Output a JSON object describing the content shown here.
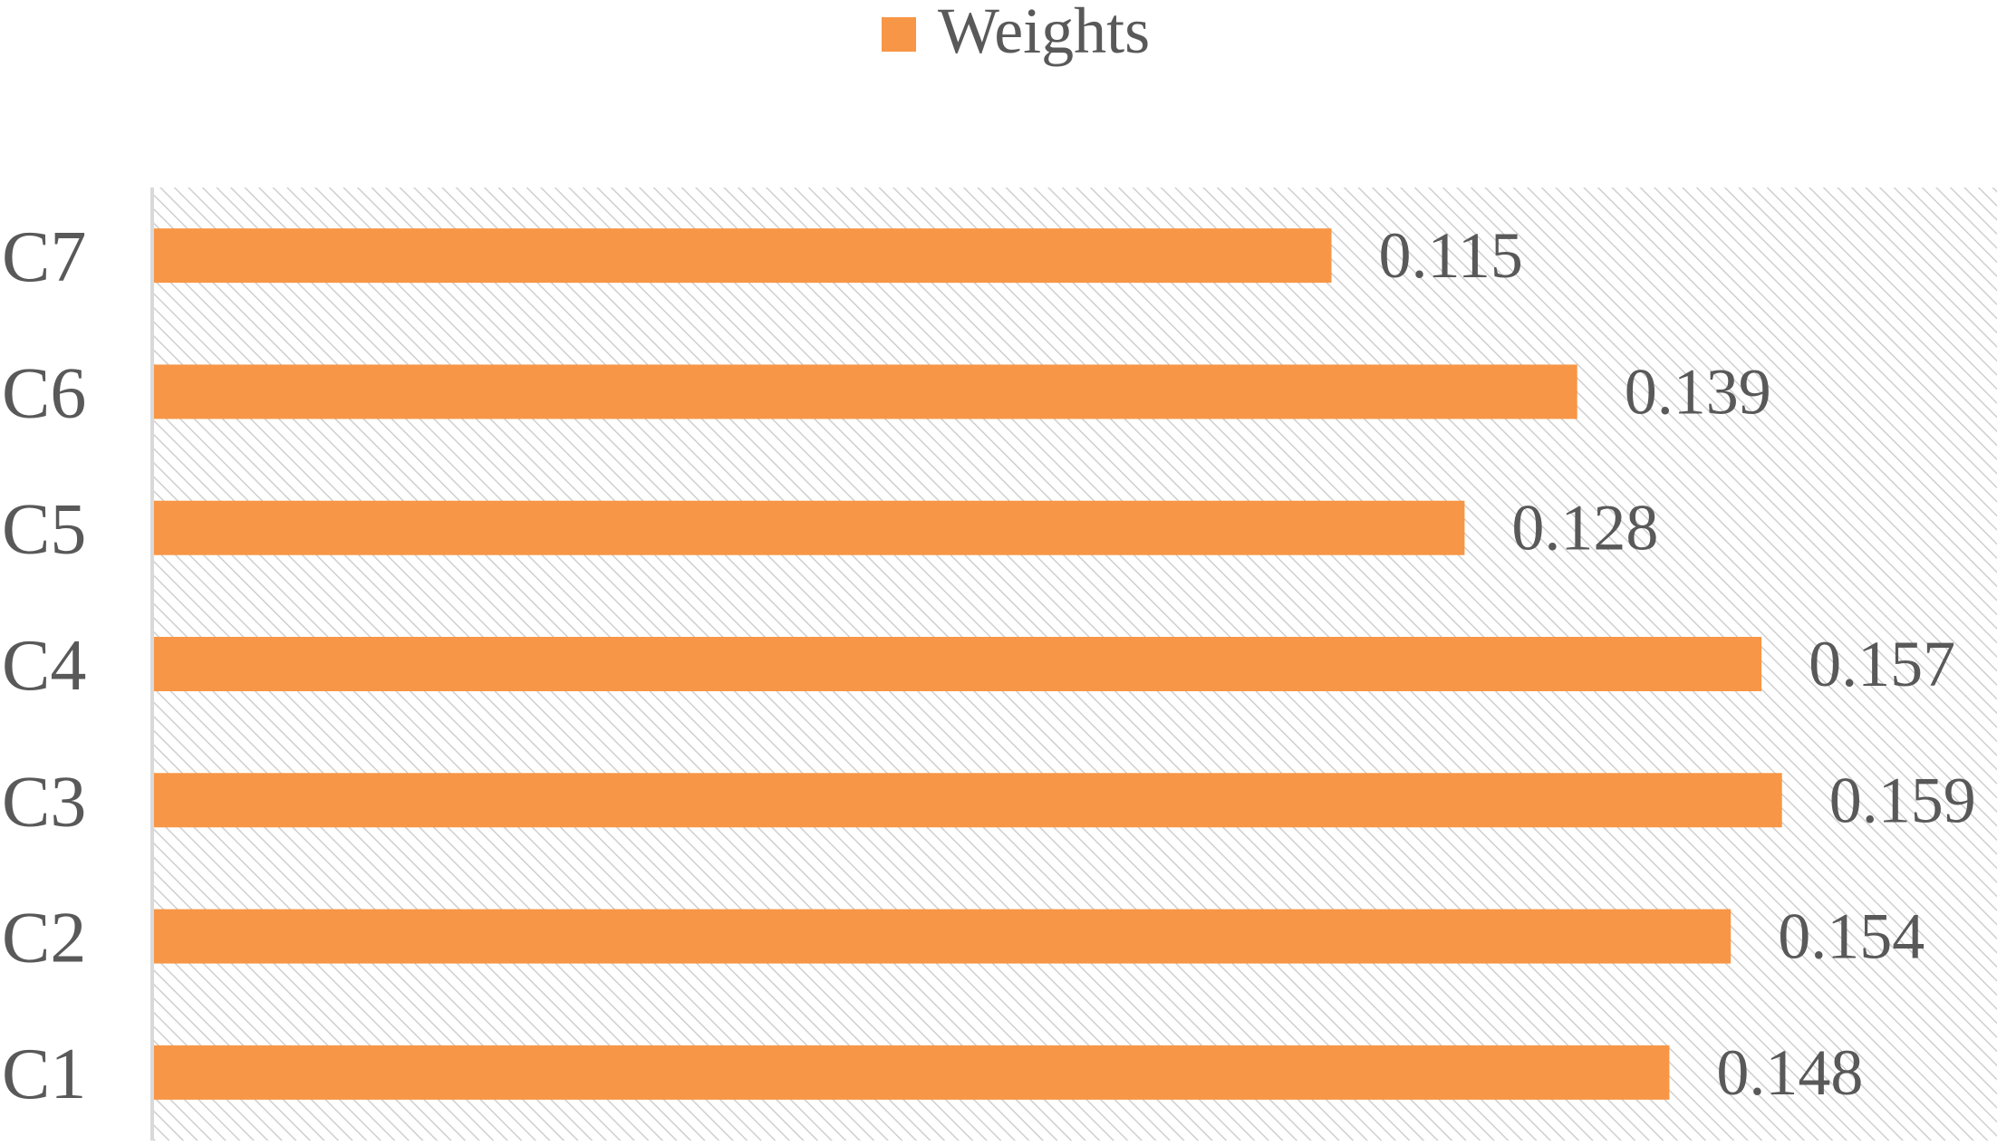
{
  "chart_data": {
    "type": "bar",
    "orientation": "horizontal",
    "categories": [
      "C1",
      "C2",
      "C3",
      "C4",
      "C5",
      "C6",
      "C7"
    ],
    "series": [
      {
        "name": "Weights",
        "values": [
          0.148,
          0.154,
          0.159,
          0.157,
          0.128,
          0.139,
          0.115
        ]
      }
    ],
    "value_labels": [
      "0.148",
      "0.154",
      "0.159",
      "0.157",
      "0.128",
      "0.139",
      "0.115"
    ],
    "xlim": [
      0,
      0.18
    ],
    "legend_position": "top-center",
    "grid": false,
    "plot_background": "diagonal-hatch",
    "colors": {
      "bar": "#F79646",
      "text": "#595959",
      "axis": "#D9D9D9",
      "hatch": "#CFCFCF"
    }
  }
}
